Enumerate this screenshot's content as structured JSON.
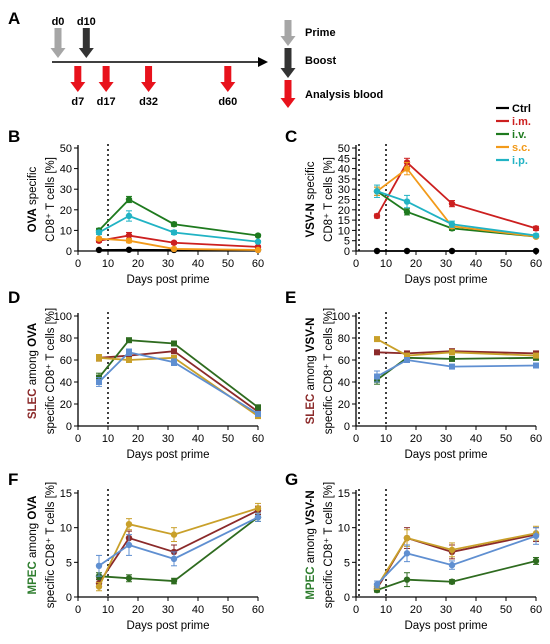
{
  "timeline": {
    "panel_letter": "A",
    "top_labels": [
      "d0",
      "d10"
    ],
    "bottom_labels": [
      "d7",
      "d17",
      "d32",
      "d60"
    ],
    "legend": {
      "prime": "Prime",
      "boost": "Boost",
      "analysis": "Analysis blood"
    },
    "colors": {
      "prime": "#a6a6a6",
      "boost": "#333333",
      "analysis": "#e8121c"
    }
  },
  "series_legend": [
    {
      "name": "Ctrl",
      "color": "#000000"
    },
    {
      "name": "i.m.",
      "color": "#cc1f1f"
    },
    {
      "name": "i.v.",
      "color": "#1e7a1e"
    },
    {
      "name": "s.c.",
      "color": "#f29a1a"
    },
    {
      "name": "i.p.",
      "color": "#21b3c4"
    }
  ],
  "chart_data": [
    {
      "panel": "B",
      "type": "line",
      "ylabel_prefix": "OVA",
      "ylabel_lines": [
        "specific",
        "CD8⁺ T cells [%]"
      ],
      "xlabel": "Days post prime",
      "xlim": [
        0,
        60
      ],
      "ylim": [
        0,
        50
      ],
      "xticks": [
        0,
        10,
        20,
        30,
        40,
        50,
        60
      ],
      "yticks": [
        0,
        10,
        20,
        30,
        40,
        50
      ],
      "vlines": [
        10
      ],
      "x": [
        7,
        17,
        32,
        60
      ],
      "series": [
        {
          "name": "Ctrl",
          "values": [
            0.5,
            0.6,
            0.5,
            0.5
          ],
          "errors": [
            0.3,
            0.3,
            0.3,
            0.3
          ],
          "color": "#000000"
        },
        {
          "name": "i.m.",
          "values": [
            5,
            7.5,
            4,
            2
          ],
          "errors": [
            0.8,
            1.5,
            0.7,
            0.5
          ],
          "color": "#cc1f1f"
        },
        {
          "name": "i.v.",
          "values": [
            10,
            25,
            13,
            7.5
          ],
          "errors": [
            1,
            1.5,
            1,
            0.6
          ],
          "color": "#1e7a1e"
        },
        {
          "name": "s.c.",
          "values": [
            6,
            5,
            1,
            0.5
          ],
          "errors": [
            0.8,
            1,
            0.4,
            0.3
          ],
          "color": "#f29a1a"
        },
        {
          "name": "i.p.",
          "values": [
            9,
            17,
            9,
            4.5
          ],
          "errors": [
            1,
            2.5,
            1,
            0.6
          ],
          "color": "#21b3c4"
        }
      ]
    },
    {
      "panel": "C",
      "type": "line",
      "ylabel_prefix": "VSV-N",
      "ylabel_lines": [
        "specific",
        "CD8⁺ T cells [%]"
      ],
      "xlabel": "Days post prime",
      "xlim": [
        0,
        60
      ],
      "ylim": [
        0,
        50
      ],
      "xticks": [
        0,
        10,
        20,
        30,
        40,
        50,
        60
      ],
      "yticks": [
        0,
        5,
        10,
        15,
        20,
        25,
        30,
        35,
        40,
        45,
        50
      ],
      "vlines": [
        0,
        10
      ],
      "x": [
        7,
        17,
        32,
        60
      ],
      "series": [
        {
          "name": "Ctrl",
          "values": [
            0,
            0,
            0,
            0
          ],
          "errors": [
            0.3,
            0.3,
            0.3,
            0.3
          ],
          "color": "#000000"
        },
        {
          "name": "i.m.",
          "values": [
            17,
            43,
            23,
            11
          ],
          "errors": [
            1,
            2,
            1.5,
            1
          ],
          "color": "#cc1f1f"
        },
        {
          "name": "i.v.",
          "values": [
            29,
            19,
            11,
            7
          ],
          "errors": [
            2,
            1.5,
            1,
            0.6
          ],
          "color": "#1e7a1e"
        },
        {
          "name": "s.c.",
          "values": [
            29,
            40,
            12,
            7
          ],
          "errors": [
            2,
            3,
            1,
            0.7
          ],
          "color": "#f29a1a"
        },
        {
          "name": "i.p.",
          "values": [
            29,
            24,
            13,
            7.5
          ],
          "errors": [
            3,
            3,
            1.5,
            0.8
          ],
          "color": "#21b3c4"
        }
      ]
    },
    {
      "panel": "D",
      "type": "line",
      "ylabel_prefix": "SLEC",
      "ylabel_mid": " among ",
      "ylabel_antigen": "OVA",
      "ylabel_lines": [
        "specific CD8⁺ T cells [%]"
      ],
      "prefix_color": "#8b2a2a",
      "xlabel": "Days post prime",
      "xlim": [
        0,
        60
      ],
      "ylim": [
        0,
        100
      ],
      "xticks": [
        0,
        10,
        20,
        30,
        40,
        50,
        60
      ],
      "yticks": [
        0,
        20,
        40,
        60,
        80,
        100
      ],
      "vlines": [
        10
      ],
      "x": [
        7,
        17,
        32,
        60
      ],
      "series": [
        {
          "name": "i.m.",
          "values": [
            62,
            64,
            68,
            13
          ],
          "errors": [
            3,
            2,
            2,
            2
          ],
          "color": "#8b2a2a"
        },
        {
          "name": "i.v.",
          "values": [
            44,
            78,
            75,
            17
          ],
          "errors": [
            4,
            2,
            2,
            2
          ],
          "color": "#2e6b1f"
        },
        {
          "name": "s.c.",
          "values": [
            62,
            60,
            62,
            9
          ],
          "errors": [
            3,
            2,
            2,
            2
          ],
          "color": "#c9a02a"
        },
        {
          "name": "i.p.",
          "values": [
            40,
            67,
            58,
            11
          ],
          "errors": [
            4,
            3,
            3,
            2
          ],
          "color": "#5f8fd1"
        }
      ]
    },
    {
      "panel": "E",
      "type": "line",
      "ylabel_prefix": "SLEC",
      "ylabel_mid": " among ",
      "ylabel_antigen": "VSV-N",
      "ylabel_lines": [
        "specific CD8⁺ T cells [%]"
      ],
      "prefix_color": "#8b2a2a",
      "xlabel": "Days post prime",
      "xlim": [
        0,
        60
      ],
      "ylim": [
        0,
        100
      ],
      "xticks": [
        0,
        10,
        20,
        30,
        40,
        50,
        60
      ],
      "yticks": [
        0,
        20,
        40,
        60,
        80,
        100
      ],
      "vlines": [
        0,
        10
      ],
      "x": [
        7,
        17,
        32,
        60
      ],
      "series": [
        {
          "name": "i.m.",
          "values": [
            67,
            66,
            68,
            66
          ],
          "errors": [
            2,
            2,
            2,
            2
          ],
          "color": "#8b2a2a"
        },
        {
          "name": "i.v.",
          "values": [
            42,
            62,
            61,
            62
          ],
          "errors": [
            4,
            2,
            2,
            2
          ],
          "color": "#2e6b1f"
        },
        {
          "name": "s.c.",
          "values": [
            79,
            64,
            67,
            64
          ],
          "errors": [
            2,
            2,
            2,
            2
          ],
          "color": "#c9a02a"
        },
        {
          "name": "i.p.",
          "values": [
            45,
            60,
            54,
            55
          ],
          "errors": [
            5,
            2,
            2,
            2
          ],
          "color": "#5f8fd1"
        }
      ]
    },
    {
      "panel": "F",
      "type": "line",
      "ylabel_prefix": "MPEC",
      "ylabel_mid": " among ",
      "ylabel_antigen": "OVA",
      "ylabel_lines": [
        "specific CD8⁺ T cells [%]"
      ],
      "prefix_color": "#2e7d2e",
      "xlabel": "Days post prime",
      "xlim": [
        0,
        60
      ],
      "ylim": [
        0,
        15
      ],
      "xticks": [
        0,
        10,
        20,
        30,
        40,
        50,
        60
      ],
      "yticks": [
        0,
        5,
        10,
        15
      ],
      "vlines": [
        10
      ],
      "x": [
        7,
        17,
        32,
        60
      ],
      "series": [
        {
          "name": "i.m.",
          "values": [
            2,
            8.5,
            6.5,
            12.5
          ],
          "errors": [
            0.6,
            1,
            1,
            0.6
          ],
          "color": "#8b2a2a"
        },
        {
          "name": "i.v.",
          "values": [
            3,
            2.7,
            2.3,
            11.5
          ],
          "errors": [
            0.5,
            0.5,
            0.4,
            0.6
          ],
          "color": "#2e6b1f"
        },
        {
          "name": "s.c.",
          "values": [
            1.5,
            10.5,
            9,
            12.8
          ],
          "errors": [
            0.6,
            0.8,
            1,
            0.7
          ],
          "color": "#c9a02a"
        },
        {
          "name": "i.p.",
          "values": [
            4.5,
            7.5,
            5.5,
            11.5
          ],
          "errors": [
            1.5,
            1.5,
            1,
            0.6
          ],
          "color": "#5f8fd1"
        }
      ]
    },
    {
      "panel": "G",
      "type": "line",
      "ylabel_prefix": "MPEC",
      "ylabel_mid": " among ",
      "ylabel_antigen": "VSV-N",
      "ylabel_lines": [
        "specific CD8⁺ T cells [%]"
      ],
      "prefix_color": "#2e7d2e",
      "xlabel": "Days post prime",
      "xlim": [
        0,
        60
      ],
      "ylim": [
        0,
        15
      ],
      "xticks": [
        0,
        10,
        20,
        30,
        40,
        50,
        60
      ],
      "yticks": [
        0,
        5,
        10,
        15
      ],
      "vlines": [
        0,
        10
      ],
      "x": [
        7,
        17,
        32,
        60
      ],
      "series": [
        {
          "name": "i.m.",
          "values": [
            1.2,
            8.5,
            6.5,
            9
          ],
          "errors": [
            0.4,
            1.5,
            1,
            1
          ],
          "color": "#8b2a2a"
        },
        {
          "name": "i.v.",
          "values": [
            1,
            2.5,
            2.2,
            5.2
          ],
          "errors": [
            0.3,
            1,
            0.3,
            0.5
          ],
          "color": "#2e6b1f"
        },
        {
          "name": "s.c.",
          "values": [
            1.5,
            8.5,
            6.8,
            9.2
          ],
          "errors": [
            0.4,
            1.2,
            1,
            1
          ],
          "color": "#c9a02a"
        },
        {
          "name": "i.p.",
          "values": [
            1.8,
            6.3,
            4.6,
            8.8
          ],
          "errors": [
            0.5,
            1.2,
            0.6,
            1.2
          ],
          "color": "#5f8fd1"
        }
      ]
    }
  ]
}
